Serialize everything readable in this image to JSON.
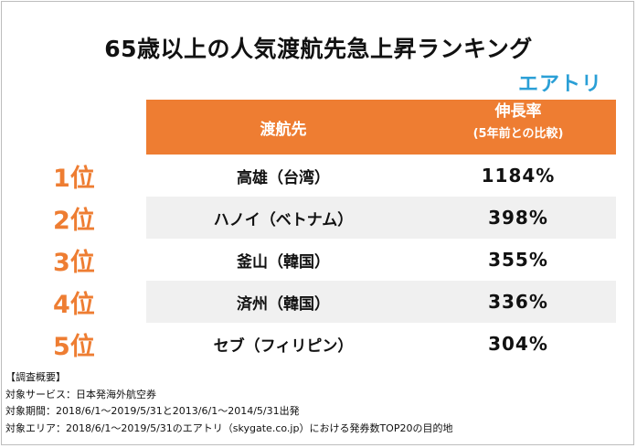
{
  "title": "65歳以上の人気渡航先急上昇ランキング",
  "logo": "エアトリ",
  "header": {
    "destination": "渡航先",
    "rate": "伸長率",
    "rate_sub": "(5年前との比較)"
  },
  "rows": [
    {
      "rank": "1位",
      "destination": "高雄（台湾）",
      "rate": "1184%"
    },
    {
      "rank": "2位",
      "destination": "ハノイ（ベトナム）",
      "rate": "398%"
    },
    {
      "rank": "3位",
      "destination": "釜山（韓国）",
      "rate": "355%"
    },
    {
      "rank": "4位",
      "destination": "済州（韓国）",
      "rate": "336%"
    },
    {
      "rank": "5位",
      "destination": "セブ（フィリピン）",
      "rate": "304%"
    }
  ],
  "notes": [
    "【調査概要】",
    "対象サービス：日本発海外航空券",
    "対象期間：2018/6/1～2019/5/31と2013/6/1～2014/5/31出発",
    "対象エリア：2018/6/1～2019/5/31のエアトリ（skygate.co.jp）における発券数TOP20の目的地"
  ],
  "colors": {
    "accent": "#ee7d32",
    "logo": "#2a9fd6",
    "row_shade": "#f0f0f0"
  }
}
